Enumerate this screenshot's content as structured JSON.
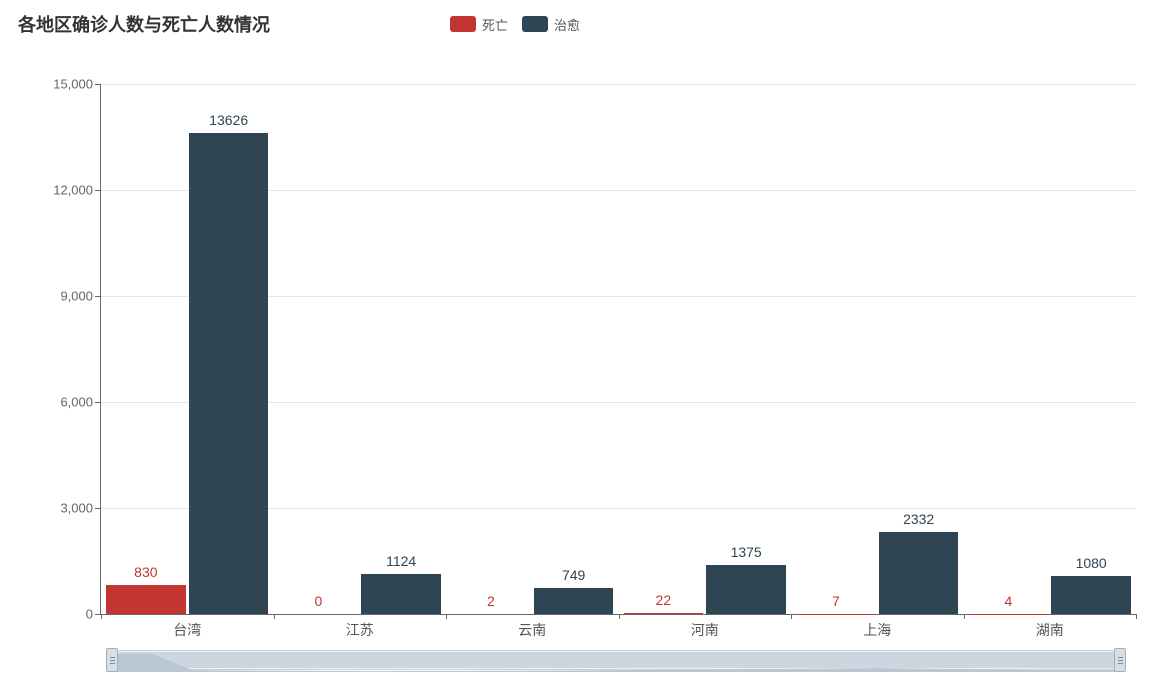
{
  "title": "各地区确诊人数与死亡人数情况",
  "legend": {
    "items": [
      {
        "label": "死亡",
        "color": "#c23531"
      },
      {
        "label": "治愈",
        "color": "#2f4554"
      }
    ]
  },
  "chart": {
    "type": "bar",
    "background_color": "#ffffff",
    "grid_color": "#e5e6e7",
    "axis_color": "#666666",
    "label_color_x": "#555555",
    "label_color_y": "#666666",
    "label_fontsize": 13,
    "value_label_fontsize": 14,
    "bar_group_gap_ratio": 0.06,
    "ylim": [
      0,
      15000
    ],
    "ytick_step": 3000,
    "ytick_labels": [
      "0",
      "3,000",
      "6,000",
      "9,000",
      "12,000",
      "15,000"
    ],
    "categories": [
      "台湾",
      "江苏",
      "云南",
      "河南",
      "上海",
      "湖南"
    ],
    "series": [
      {
        "key": "deaths",
        "name": "死亡",
        "color": "#c23531",
        "label_color": "#c23531",
        "values": [
          830,
          0,
          2,
          22,
          7,
          4
        ]
      },
      {
        "key": "cured",
        "name": "治愈",
        "color": "#2f4554",
        "label_color": "#2f4554",
        "values": [
          13626,
          1124,
          749,
          1375,
          2332,
          1080
        ]
      }
    ],
    "data_zoom": {
      "enabled": true,
      "start_pct": 0,
      "end_pct": 100,
      "background": "#eef0f4",
      "track_color": "#cdd6df",
      "silhouette_color": "#b9c6d3",
      "border_color": "#c7d0d9",
      "handle_fill": "#d8dee6",
      "handle_border": "#9fb0c0"
    }
  }
}
